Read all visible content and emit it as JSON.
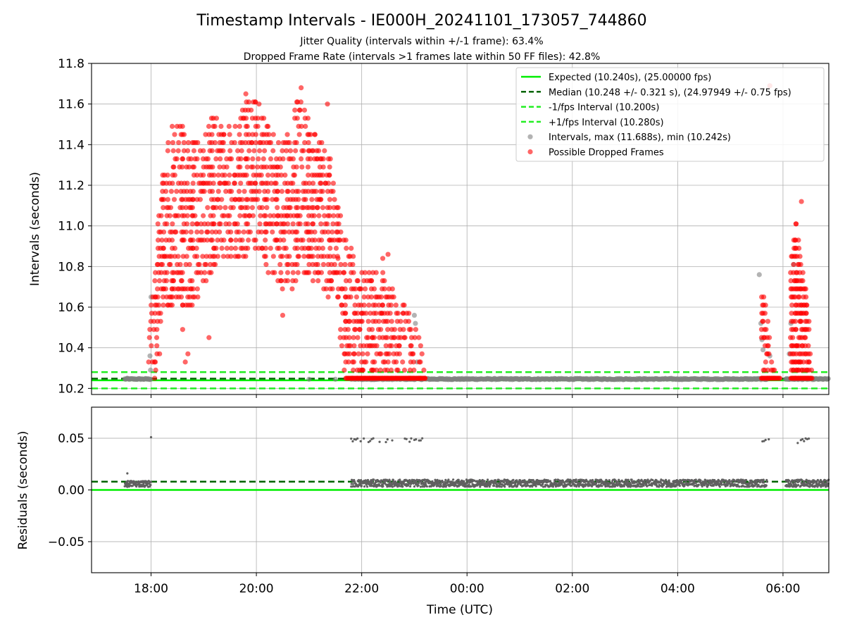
{
  "title": "Timestamp Intervals - IE000H_20241101_173057_744860",
  "subtitle1": "Jitter Quality (intervals within +/-1 frame): 63.4%",
  "subtitle2": "Dropped Frame Rate (intervals >1 frames late within 50 FF files): 42.8%",
  "colors": {
    "expected": "#00ee00",
    "median": "#006400",
    "interval_lines": "#22ee22",
    "intervals": "#808080",
    "dropped": "#ff0000",
    "residual_points": "#606060"
  },
  "chart_data": [
    {
      "type": "scatter",
      "panel": "top",
      "ylabel": "Intervals (seconds)",
      "xlabel": "",
      "ylim": [
        10.17,
        11.8
      ],
      "yticks": [
        "10.2",
        "10.4",
        "10.6",
        "10.8",
        "11.0",
        "11.2",
        "11.4",
        "11.6",
        "11.8"
      ],
      "ytick_values": [
        10.2,
        10.4,
        10.6,
        10.8,
        11.0,
        11.2,
        11.4,
        11.6,
        11.8
      ],
      "xlim_hours": [
        16.87,
        30.87
      ],
      "grid": true,
      "legend_position": "top-right",
      "legend": [
        {
          "label": "Expected (10.240s), (25.00000 fps)",
          "kind": "solid",
          "color": "#00ee00"
        },
        {
          "label": "Median (10.248 +/- 0.321 s), (24.97949 +/- 0.75 fps)",
          "kind": "dashed",
          "color": "#006400"
        },
        {
          "label": "-1/fps Interval (10.200s)",
          "kind": "dashed",
          "color": "#22ee22"
        },
        {
          "label": "+1/fps Interval (10.280s)",
          "kind": "dashed",
          "color": "#22ee22"
        },
        {
          "label": "Intervals, max (11.688s), min (10.242s)",
          "kind": "marker",
          "color": "#808080"
        },
        {
          "label": "Possible Dropped Frames",
          "kind": "marker",
          "color": "#ff0000"
        }
      ],
      "hlines": {
        "expected": 10.24,
        "median": 10.248,
        "minus_fps": 10.2,
        "plus_fps": 10.28
      },
      "series": [
        {
          "name": "Intervals, max (11.688s), min (10.242s)",
          "points": [
            [
              17.55,
              10.25
            ],
            [
              17.98,
              10.36
            ],
            [
              17.99,
              10.29
            ],
            [
              18.0,
              10.65
            ],
            [
              23.0,
              10.56
            ],
            [
              23.02,
              10.52
            ],
            [
              23.05,
              10.33
            ],
            [
              21.0,
              10.245
            ],
            [
              21.5,
              10.245
            ],
            [
              22.0,
              10.245
            ],
            [
              29.55,
              10.76
            ],
            [
              29.58,
              10.52
            ],
            [
              29.6,
              10.44
            ],
            [
              29.62,
              10.39
            ],
            [
              29.75,
              10.36
            ],
            [
              30.12,
              10.37
            ],
            [
              30.15,
              10.52
            ],
            [
              30.2,
              10.81
            ]
          ],
          "baseline_segments": [
            [
              17.5,
              18.0,
              10.246
            ],
            [
              21.8,
              29.7,
              10.246
            ],
            [
              30.05,
              30.87,
              10.246
            ]
          ]
        },
        {
          "name": "Possible Dropped Frames",
          "envelope": [
            [
              17.97,
              10.25,
              10.49
            ],
            [
              18.1,
              10.25,
              10.93
            ],
            [
              18.25,
              10.6,
              11.3
            ],
            [
              18.4,
              10.6,
              11.48
            ],
            [
              18.6,
              10.6,
              11.48
            ],
            [
              18.8,
              10.6,
              11.4
            ],
            [
              19.0,
              10.72,
              11.48
            ],
            [
              19.2,
              10.8,
              11.55
            ],
            [
              19.4,
              10.86,
              11.45
            ],
            [
              19.6,
              10.82,
              11.52
            ],
            [
              19.8,
              10.86,
              11.62
            ],
            [
              20.0,
              10.9,
              11.6
            ],
            [
              20.2,
              10.8,
              11.5
            ],
            [
              20.4,
              10.7,
              11.42
            ],
            [
              20.6,
              10.66,
              11.44
            ],
            [
              20.8,
              10.72,
              11.62
            ],
            [
              21.0,
              10.75,
              11.55
            ],
            [
              21.2,
              10.72,
              11.42
            ],
            [
              21.4,
              10.65,
              11.35
            ],
            [
              21.55,
              10.55,
              11.1
            ],
            [
              21.7,
              10.25,
              10.92
            ],
            [
              21.85,
              10.25,
              10.86
            ],
            [
              22.0,
              10.25,
              10.78
            ],
            [
              22.2,
              10.25,
              10.76
            ],
            [
              22.4,
              10.25,
              10.76
            ],
            [
              22.6,
              10.25,
              10.7
            ],
            [
              22.8,
              10.25,
              10.62
            ],
            [
              22.95,
              10.25,
              10.55
            ],
            [
              23.1,
              10.25,
              10.45
            ],
            [
              23.2,
              10.25,
              10.3
            ]
          ],
          "late_cluster_1": [
            [
              29.6,
              10.25,
              10.66
            ],
            [
              29.7,
              10.25,
              10.6
            ],
            [
              29.8,
              10.25,
              10.3
            ],
            [
              29.95,
              10.25,
              10.25
            ]
          ],
          "late_cluster_2": [
            [
              30.15,
              10.25,
              10.85
            ],
            [
              30.25,
              10.25,
              11.0
            ],
            [
              30.35,
              10.25,
              10.82
            ],
            [
              30.45,
              10.25,
              10.7
            ],
            [
              30.55,
              10.25,
              10.25
            ]
          ],
          "outliers": [
            [
              18.65,
              10.33
            ],
            [
              18.7,
              10.37
            ],
            [
              18.6,
              10.49
            ],
            [
              19.1,
              10.45
            ],
            [
              19.8,
              11.65
            ],
            [
              20.05,
              11.6
            ],
            [
              20.5,
              10.56
            ],
            [
              20.85,
              11.68
            ],
            [
              21.35,
              11.6
            ],
            [
              21.55,
              10.84
            ],
            [
              22.5,
              10.86
            ],
            [
              22.4,
              10.84
            ],
            [
              29.75,
              11.69
            ],
            [
              30.35,
              11.12
            ],
            [
              30.25,
              11.01
            ]
          ]
        }
      ]
    },
    {
      "type": "scatter",
      "panel": "bottom",
      "ylabel": "Residuals (seconds)",
      "xlabel": "Time (UTC)",
      "ylim": [
        -0.08,
        0.08
      ],
      "yticks": [
        "−0.05",
        "0.00",
        "0.05"
      ],
      "ytick_values": [
        -0.05,
        0.0,
        0.05
      ],
      "xticks": [
        "18:00",
        "20:00",
        "22:00",
        "00:00",
        "02:00",
        "04:00",
        "06:00"
      ],
      "xtick_hours": [
        18,
        20,
        22,
        24,
        26,
        28,
        30
      ],
      "xlim_hours": [
        16.87,
        30.87
      ],
      "grid": true,
      "hlines": {
        "zero": 0.0,
        "median": 0.008
      },
      "series": [
        {
          "name": "Residuals",
          "band_segments": [
            [
              17.5,
              18.0,
              0.003,
              0.009
            ],
            [
              21.8,
              29.7,
              0.003,
              0.01
            ],
            [
              30.05,
              30.87,
              0.003,
              0.01
            ]
          ],
          "high_cluster": [
            [
              21.8,
              23.2,
              0.046,
              0.05
            ],
            [
              29.55,
              29.75,
              0.046,
              0.049
            ],
            [
              30.25,
              30.5,
              0.045,
              0.05
            ]
          ],
          "outliers": [
            [
              17.55,
              0.016
            ],
            [
              17.55,
              0.003
            ],
            [
              18.0,
              0.051
            ]
          ]
        }
      ]
    }
  ]
}
